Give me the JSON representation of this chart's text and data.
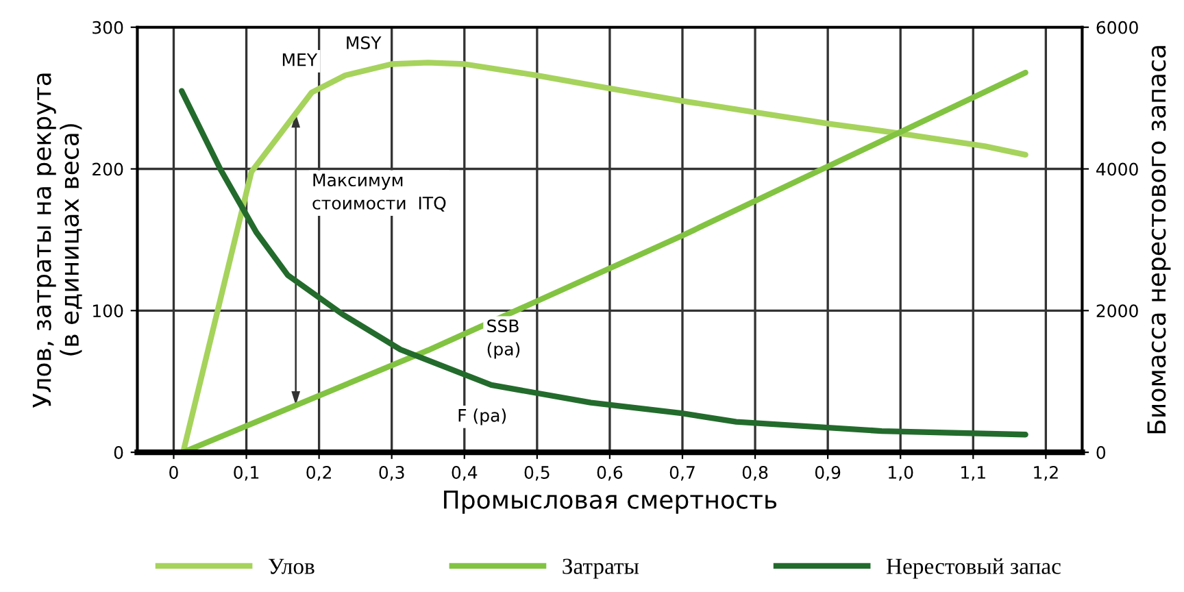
{
  "chart_data": {
    "type": "line",
    "xlabel": "Промысловая смертность",
    "ylabel": "Улов, затраты на рекрута\n(в единицах веса)",
    "y2label": "Биомасса нерестового запаса",
    "xlim": [
      -0.05,
      1.25
    ],
    "xticks": [
      {
        "value": 0,
        "label": "0"
      },
      {
        "value": 0.1,
        "label": "0,1"
      },
      {
        "value": 0.2,
        "label": "0,2"
      },
      {
        "value": 0.3,
        "label": "0,3"
      },
      {
        "value": 0.4,
        "label": "0,4"
      },
      {
        "value": 0.5,
        "label": "0,5"
      },
      {
        "value": 0.6,
        "label": "0,6"
      },
      {
        "value": 0.7,
        "label": "0,7"
      },
      {
        "value": 0.8,
        "label": "0,8"
      },
      {
        "value": 0.9,
        "label": "0,9"
      },
      {
        "value": 1.0,
        "label": "1,0"
      },
      {
        "value": 1.1,
        "label": "1,1"
      },
      {
        "value": 1.2,
        "label": "1,2"
      }
    ],
    "ylim": [
      0,
      300
    ],
    "yticks": [
      0,
      100,
      200,
      300
    ],
    "y2lim": [
      0,
      6000
    ],
    "y2ticks": [
      0,
      2000,
      4000,
      6000
    ],
    "grid": true,
    "legend": "bottom",
    "marker": "none",
    "line_style": "solid",
    "series": [
      {
        "name": "Улов",
        "color": "#a6d35c",
        "x": [
          0.013,
          0.107,
          0.19,
          0.236,
          0.3,
          0.35,
          0.4,
          0.5,
          0.587,
          0.7,
          0.8,
          0.9,
          1.0,
          1.116,
          1.172
        ],
        "values": [
          0,
          198,
          254,
          266,
          274,
          275,
          274,
          266,
          258,
          248,
          240,
          232,
          225,
          216,
          210
        ]
      },
      {
        "name": "Затраты",
        "color": "#82c341",
        "x": [
          0.013,
          0.35,
          0.7,
          1.172
        ],
        "values": [
          0,
          72,
          153,
          268
        ]
      },
      {
        "name": "Нерестовый запас",
        "color": "#236b2c",
        "axis": "y2",
        "x": [
          0.011,
          0.064,
          0.114,
          0.157,
          0.232,
          0.312,
          0.437,
          0.574,
          0.699,
          0.774,
          0.974,
          1.172
        ],
        "values": [
          5100,
          4000,
          3100,
          2500,
          1950,
          1450,
          950,
          700,
          550,
          430,
          300,
          250
        ]
      }
    ],
    "annotations": [
      "MEY",
      "MSY",
      "Максимум\nстоимости  ITQ",
      "SSB\n(pa)",
      "F (pa)"
    ]
  }
}
